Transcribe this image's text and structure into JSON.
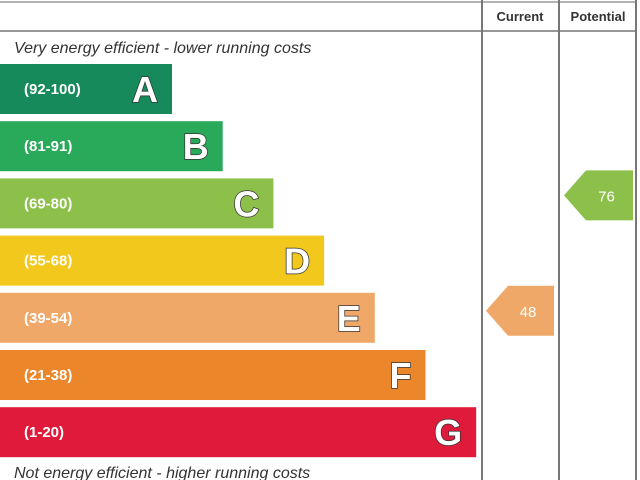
{
  "chart_data": {
    "type": "bar",
    "header": {
      "current": "Current",
      "potential": "Potential"
    },
    "top_caption": "Very energy efficient - lower running costs",
    "bottom_caption": "Not energy efficient - higher running costs",
    "bands": [
      {
        "range": "(92-100)",
        "letter": "A",
        "min": 92,
        "color": "#168a5a"
      },
      {
        "range": "(81-91)",
        "letter": "B",
        "min": 81,
        "color": "#29a95a"
      },
      {
        "range": "(69-80)",
        "letter": "C",
        "min": 69,
        "color": "#8cc04a"
      },
      {
        "range": "(55-68)",
        "letter": "D",
        "min": 55,
        "color": "#f3c81c"
      },
      {
        "range": "(39-54)",
        "letter": "E",
        "min": 39,
        "color": "#f0a868"
      },
      {
        "range": "(21-38)",
        "letter": "F",
        "min": 21,
        "color": "#ec862b"
      },
      {
        "range": "(1-20)",
        "letter": "G",
        "min": 1,
        "color": "#e01a3a"
      }
    ],
    "current": {
      "value": 48,
      "band": "E",
      "color": "#f0a868"
    },
    "potential": {
      "value": 76,
      "band": "C",
      "color": "#8cc04a"
    }
  }
}
